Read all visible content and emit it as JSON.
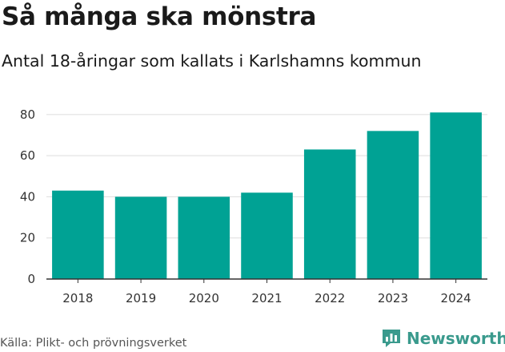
{
  "header": {
    "title": "Så många ska mönstra",
    "subtitle": "Antal 18-åringar som kallats i Karlshamns kommun"
  },
  "footer": {
    "source": "Källa: Plikt- och prövningsverket",
    "brand": "Newsworthy",
    "brand_icon": "bar-chart-logo-icon"
  },
  "colors": {
    "bar": "#00a294",
    "grid": "#dddddd",
    "axis": "#333333",
    "brand": "#3a9a8d"
  },
  "chart_data": {
    "type": "bar",
    "title": "Så många ska mönstra",
    "subtitle": "Antal 18-åringar som kallats i Karlshamns kommun",
    "categories": [
      "2018",
      "2019",
      "2020",
      "2021",
      "2022",
      "2023",
      "2024"
    ],
    "values": [
      43,
      40,
      40,
      42,
      63,
      72,
      81
    ],
    "ylim": [
      0,
      85
    ],
    "yticks": [
      0,
      20,
      40,
      60,
      80
    ],
    "xlabel": "",
    "ylabel": "",
    "grid": true,
    "legend": "none"
  }
}
